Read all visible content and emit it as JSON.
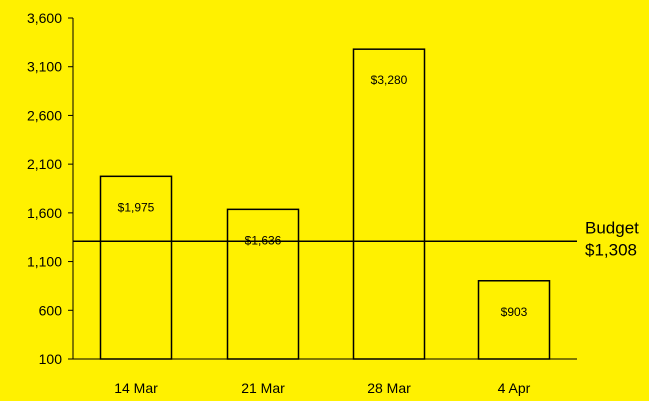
{
  "colors": {
    "background": "#FFF100",
    "bar_fill": "#FFF100",
    "bar_stroke": "#000000",
    "axis": "#000000",
    "budget_line": "#000000"
  },
  "chart_data": {
    "type": "bar",
    "title": "",
    "xlabel": "",
    "ylabel": "",
    "categories": [
      "14 Mar",
      "21 Mar",
      "28 Mar",
      "4 Apr"
    ],
    "values": [
      1975,
      1636,
      3280,
      903
    ],
    "data_labels": [
      "$1,975",
      "$1,636",
      "$3,280",
      "$903"
    ],
    "ylim": [
      100,
      3600
    ],
    "yticks": [
      100,
      600,
      1100,
      1600,
      2100,
      2600,
      3100,
      3600
    ],
    "ytick_labels": [
      "100",
      "600",
      "1,100",
      "1,600",
      "2,100",
      "2,600",
      "3,100",
      "3,600"
    ],
    "grid": false,
    "legend": "none",
    "reference_line": {
      "value": 1308,
      "label_line1": "Budget",
      "label_line2": "$1,308"
    }
  }
}
